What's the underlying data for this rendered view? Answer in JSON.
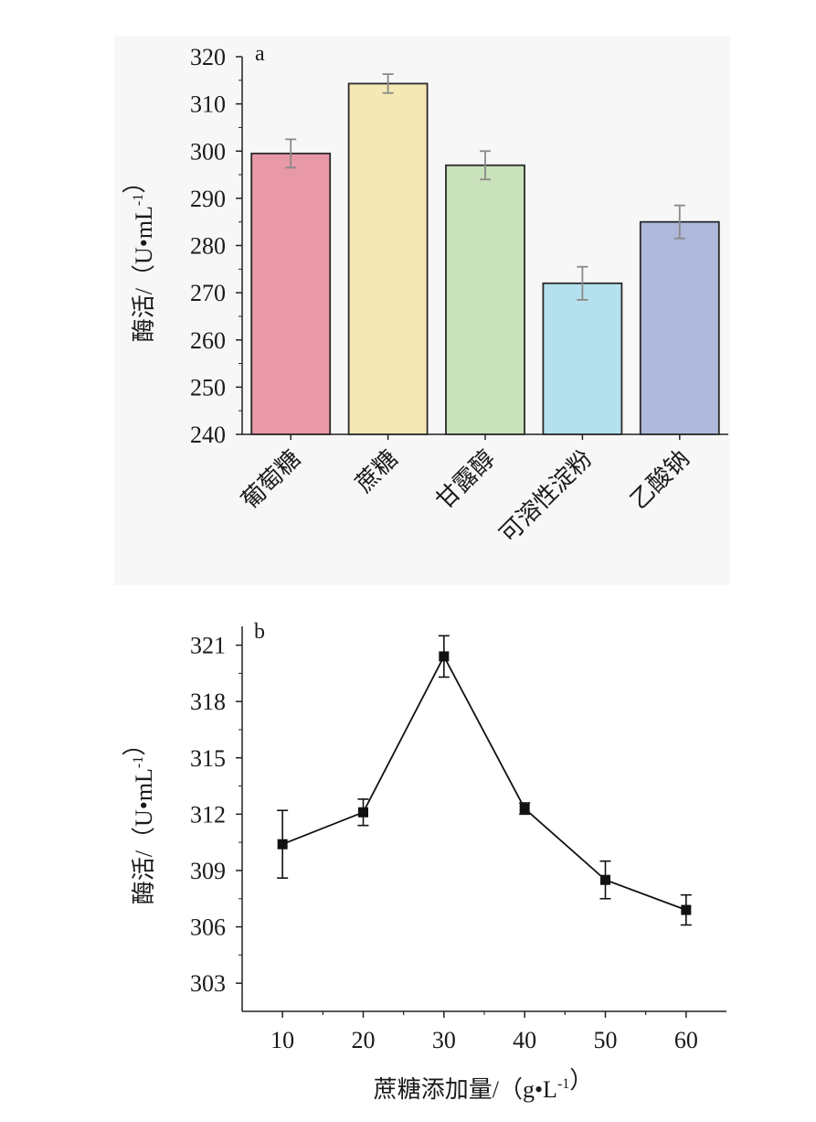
{
  "chart_data": [
    {
      "type": "bar",
      "panel_label": "a",
      "ylabel": "酶活/（U•mL-1）",
      "ylim": [
        240,
        320
      ],
      "yticks": [
        240,
        250,
        260,
        270,
        280,
        290,
        300,
        310,
        320
      ],
      "categories": [
        "葡萄糖",
        "蔗糖",
        "甘露醇",
        "可溶性淀粉",
        "乙酸钠"
      ],
      "values": [
        299.5,
        314.3,
        297.0,
        272.0,
        285.0
      ],
      "errors": [
        3.0,
        2.0,
        3.0,
        3.5,
        3.5
      ],
      "colors": [
        "#e898a6",
        "#f4e8b4",
        "#c9e2bb",
        "#b5e0ee",
        "#aeb9dc"
      ],
      "background": "#f7f7f7",
      "grid": false
    },
    {
      "type": "line",
      "panel_label": "b",
      "xlabel": "蔗糖添加量/（g•L-1）",
      "ylabel": "酶活/（U•mL-1）",
      "xlim": [
        5,
        65
      ],
      "ylim": [
        301.5,
        322
      ],
      "xticks": [
        10,
        20,
        30,
        40,
        50,
        60
      ],
      "yticks": [
        303,
        306,
        309,
        312,
        315,
        318,
        321
      ],
      "x": [
        10,
        20,
        30,
        40,
        50,
        60
      ],
      "y": [
        310.4,
        312.1,
        320.4,
        312.3,
        308.5,
        306.9
      ],
      "errors": [
        1.8,
        0.7,
        1.1,
        0.3,
        1.0,
        0.8
      ],
      "marker": "square",
      "color": "#111111",
      "grid": false
    }
  ]
}
